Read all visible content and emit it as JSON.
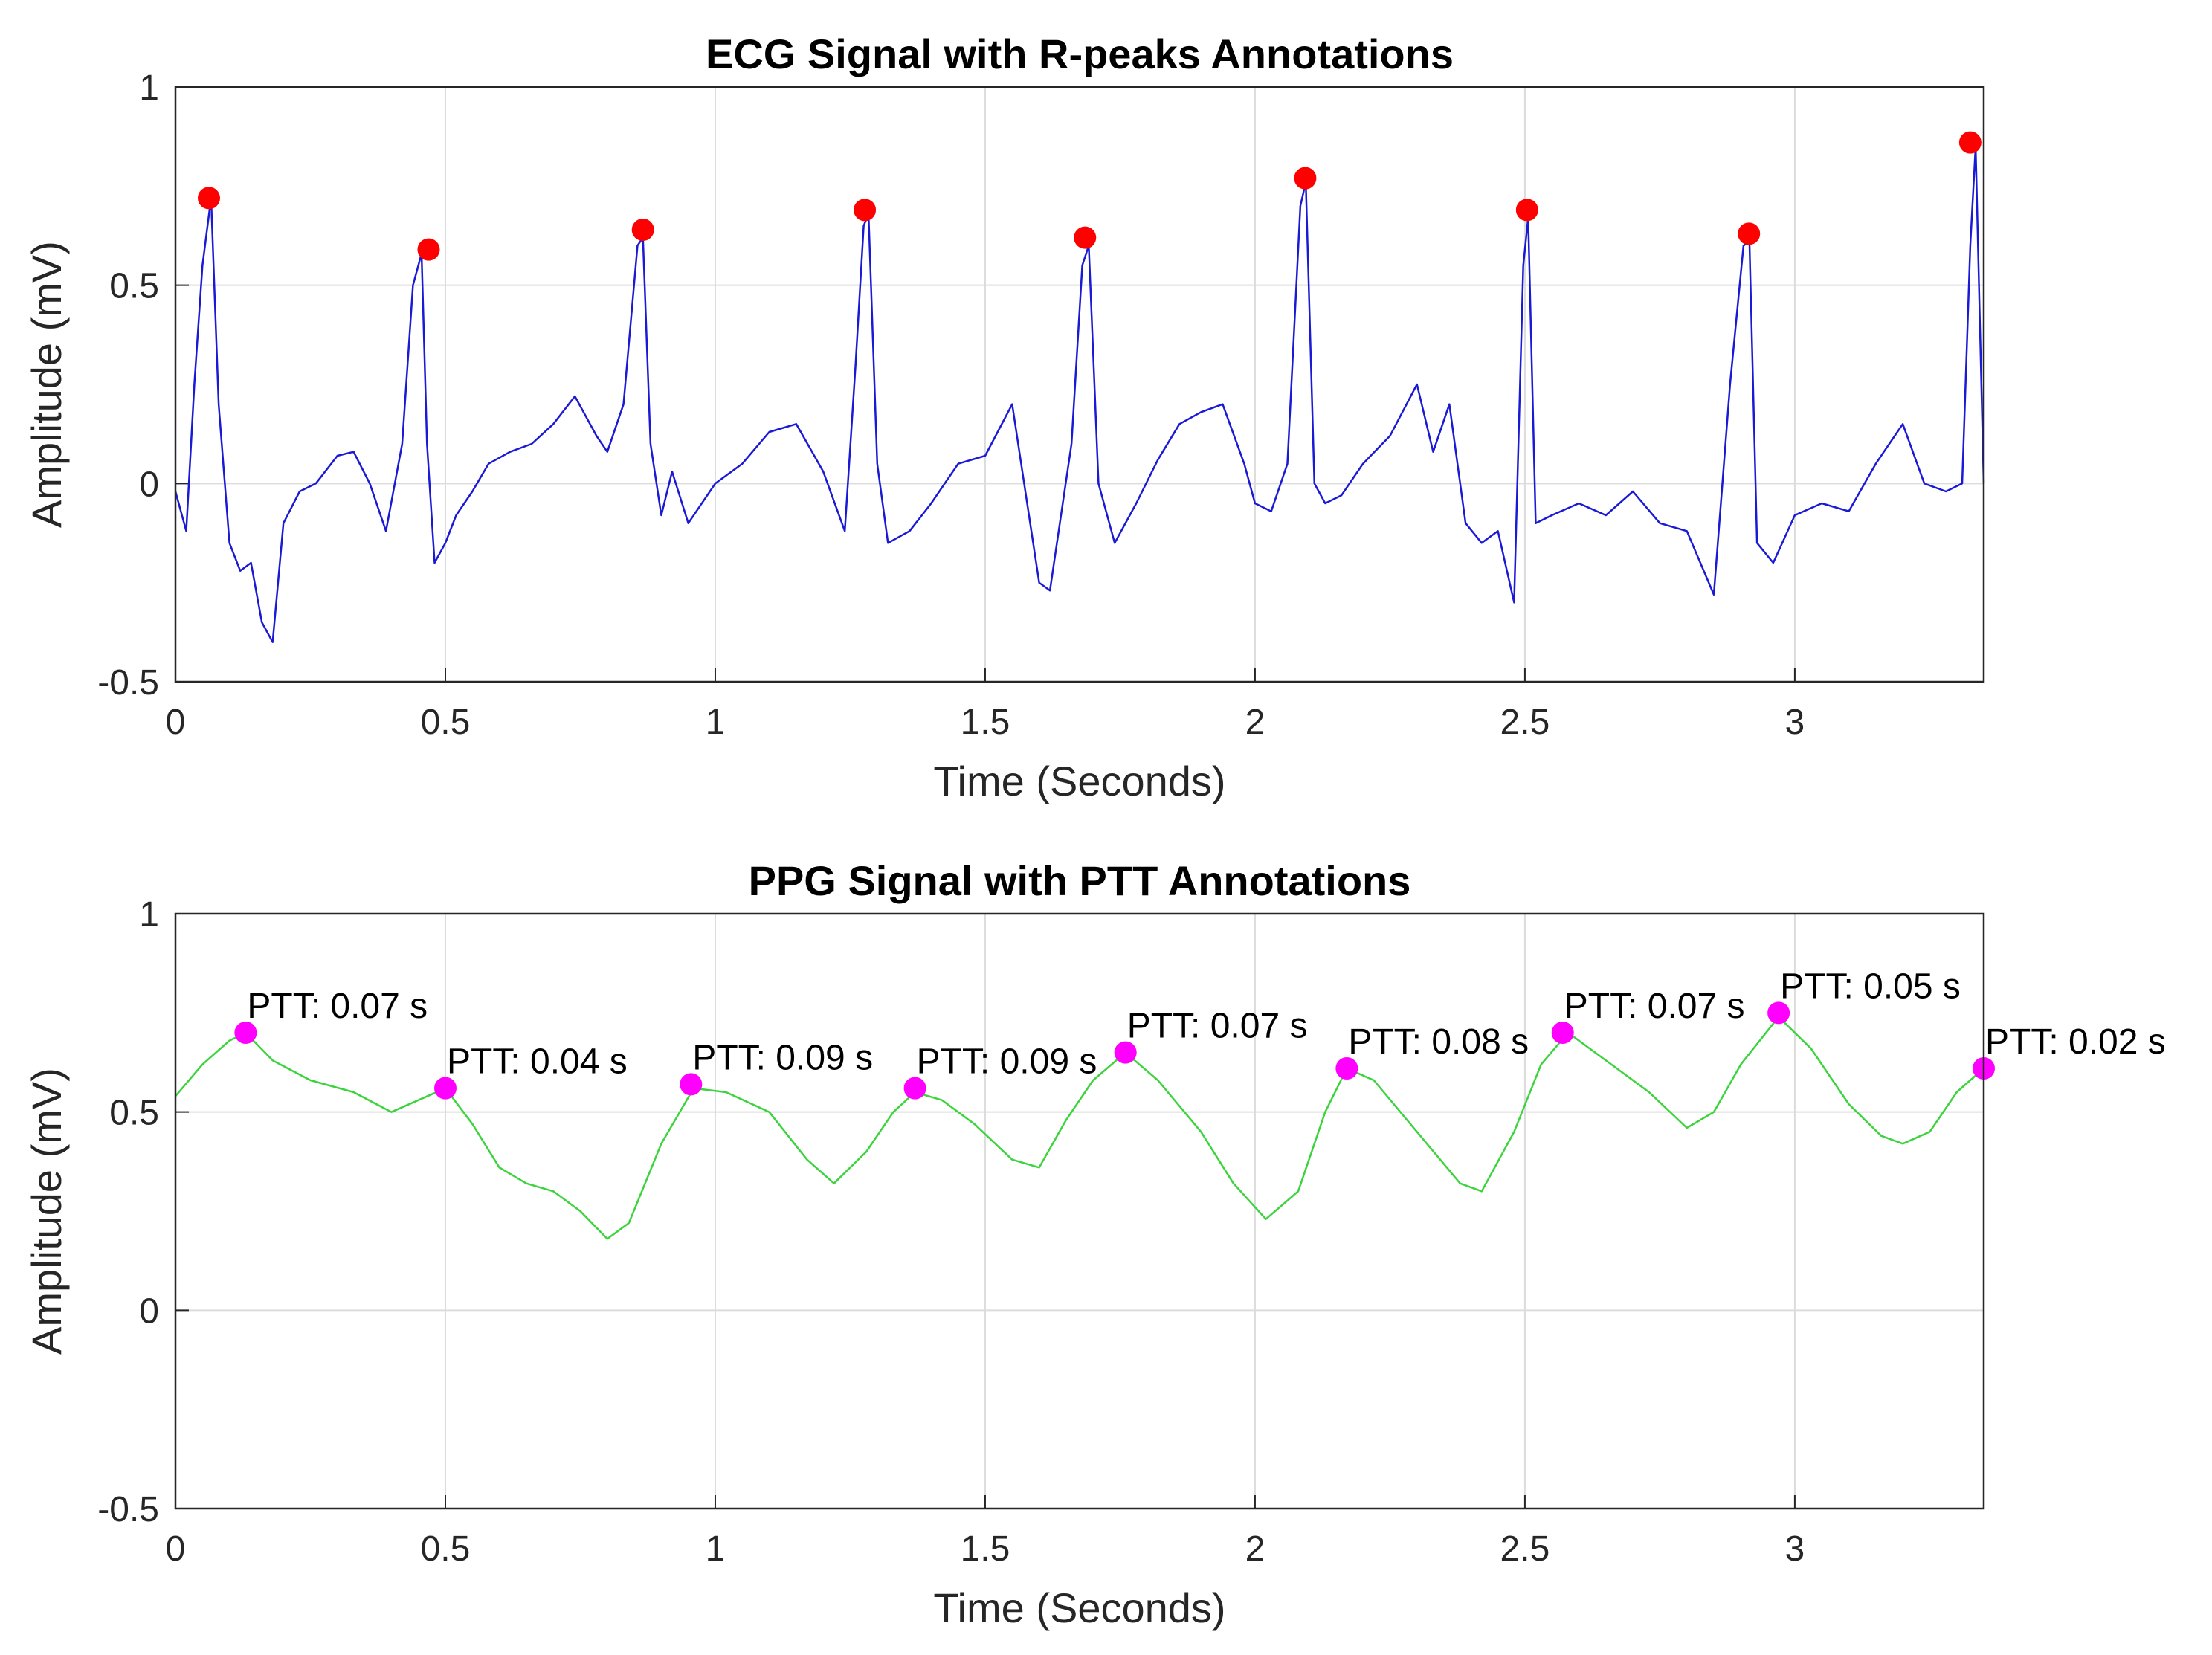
{
  "chart_data": [
    {
      "type": "line",
      "title": "ECG Signal with R-peaks Annotations",
      "xlabel": "Time (Seconds)",
      "ylabel": "Amplitude (mV)",
      "xlim": [
        0,
        3.35
      ],
      "ylim": [
        -0.5,
        1
      ],
      "xticks": [
        0,
        0.5,
        1,
        1.5,
        2,
        2.5,
        3
      ],
      "xtick_labels": [
        "0",
        "0.5",
        "1",
        "1.5",
        "2",
        "2.5",
        "3"
      ],
      "yticks": [
        -0.5,
        0,
        0.5,
        1
      ],
      "ytick_labels": [
        "-0.5",
        "0",
        "0.5",
        "1"
      ],
      "grid": true,
      "line_color": "#1a1ad6",
      "marker_color": "#ff0000",
      "series": [
        {
          "name": "ECG",
          "x": [
            0,
            0.02,
            0.035,
            0.05,
            0.066,
            0.08,
            0.1,
            0.12,
            0.14,
            0.16,
            0.18,
            0.2,
            0.23,
            0.26,
            0.3,
            0.33,
            0.36,
            0.39,
            0.42,
            0.44,
            0.456,
            0.466,
            0.48,
            0.5,
            0.52,
            0.55,
            0.58,
            0.62,
            0.66,
            0.7,
            0.74,
            0.78,
            0.8,
            0.83,
            0.856,
            0.866,
            0.88,
            0.9,
            0.92,
            0.95,
            1.0,
            1.05,
            1.1,
            1.15,
            1.2,
            1.24,
            1.26,
            1.275,
            1.284,
            1.3,
            1.32,
            1.36,
            1.4,
            1.45,
            1.5,
            1.55,
            1.6,
            1.62,
            1.66,
            1.68,
            1.692,
            1.71,
            1.74,
            1.78,
            1.82,
            1.86,
            1.9,
            1.94,
            1.98,
            2.0,
            2.03,
            2.06,
            2.084,
            2.094,
            2.11,
            2.13,
            2.16,
            2.2,
            2.25,
            2.3,
            2.33,
            2.36,
            2.39,
            2.42,
            2.45,
            2.48,
            2.497,
            2.506,
            2.52,
            2.55,
            2.6,
            2.65,
            2.7,
            2.75,
            2.8,
            2.85,
            2.88,
            2.905,
            2.916,
            2.93,
            2.96,
            3.0,
            3.05,
            3.1,
            3.15,
            3.2,
            3.24,
            3.28,
            3.31,
            3.325,
            3.335,
            3.35
          ],
          "y": [
            -0.02,
            -0.12,
            0.25,
            0.55,
            0.72,
            0.2,
            -0.15,
            -0.22,
            -0.2,
            -0.35,
            -0.4,
            -0.1,
            -0.02,
            0.0,
            0.07,
            0.08,
            0.0,
            -0.12,
            0.1,
            0.5,
            0.58,
            0.1,
            -0.2,
            -0.15,
            -0.08,
            -0.02,
            0.05,
            0.08,
            0.1,
            0.15,
            0.22,
            0.12,
            0.08,
            0.2,
            0.6,
            0.62,
            0.1,
            -0.08,
            0.03,
            -0.1,
            0.0,
            0.05,
            0.13,
            0.15,
            0.03,
            -0.12,
            0.3,
            0.65,
            0.68,
            0.05,
            -0.15,
            -0.12,
            -0.05,
            0.05,
            0.07,
            0.2,
            -0.25,
            -0.27,
            0.1,
            0.55,
            0.6,
            0.0,
            -0.15,
            -0.05,
            0.06,
            0.15,
            0.18,
            0.2,
            0.05,
            -0.05,
            -0.07,
            0.05,
            0.7,
            0.76,
            0.0,
            -0.05,
            -0.03,
            0.05,
            0.12,
            0.25,
            0.08,
            0.2,
            -0.1,
            -0.15,
            -0.12,
            -0.3,
            0.55,
            0.67,
            -0.1,
            -0.08,
            -0.05,
            -0.08,
            -0.02,
            -0.1,
            -0.12,
            -0.28,
            0.25,
            0.6,
            0.61,
            -0.15,
            -0.2,
            -0.08,
            -0.05,
            -0.07,
            0.05,
            0.15,
            0.0,
            -0.02,
            0.0,
            0.6,
            0.85,
            0.0
          ]
        }
      ],
      "markers": {
        "name": "R-peaks",
        "x": [
          0.062,
          0.469,
          0.866,
          1.277,
          1.685,
          2.093,
          2.504,
          2.915,
          3.325
        ],
        "y": [
          0.72,
          0.59,
          0.64,
          0.69,
          0.62,
          0.77,
          0.69,
          0.63,
          0.86
        ]
      }
    },
    {
      "type": "line",
      "title": "PPG Signal with PTT Annotations",
      "xlabel": "Time (Seconds)",
      "ylabel": "Amplitude (mV)",
      "xlim": [
        0,
        3.35
      ],
      "ylim": [
        -0.5,
        1
      ],
      "xticks": [
        0,
        0.5,
        1,
        1.5,
        2,
        2.5,
        3
      ],
      "xtick_labels": [
        "0",
        "0.5",
        "1",
        "1.5",
        "2",
        "2.5",
        "3"
      ],
      "yticks": [
        -0.5,
        0,
        0.5,
        1
      ],
      "ytick_labels": [
        "-0.5",
        "0",
        "0.5",
        "1"
      ],
      "grid": true,
      "line_color": "#3cd43c",
      "marker_color": "#ff00ff",
      "series": [
        {
          "name": "PPG",
          "x": [
            0,
            0.05,
            0.1,
            0.13,
            0.18,
            0.25,
            0.33,
            0.4,
            0.45,
            0.5,
            0.55,
            0.6,
            0.65,
            0.7,
            0.75,
            0.8,
            0.84,
            0.9,
            0.96,
            1.02,
            1.1,
            1.17,
            1.22,
            1.28,
            1.33,
            1.37,
            1.42,
            1.48,
            1.55,
            1.6,
            1.65,
            1.7,
            1.76,
            1.82,
            1.9,
            1.96,
            2.02,
            2.08,
            2.13,
            2.17,
            2.22,
            2.3,
            2.38,
            2.42,
            2.48,
            2.53,
            2.58,
            2.65,
            2.73,
            2.8,
            2.85,
            2.9,
            2.97,
            3.03,
            3.1,
            3.16,
            3.2,
            3.25,
            3.3,
            3.35
          ],
          "y": [
            0.54,
            0.62,
            0.68,
            0.7,
            0.63,
            0.58,
            0.55,
            0.5,
            0.53,
            0.56,
            0.47,
            0.36,
            0.32,
            0.3,
            0.25,
            0.18,
            0.22,
            0.42,
            0.56,
            0.55,
            0.5,
            0.38,
            0.32,
            0.4,
            0.5,
            0.55,
            0.53,
            0.47,
            0.38,
            0.36,
            0.48,
            0.58,
            0.65,
            0.58,
            0.45,
            0.32,
            0.23,
            0.3,
            0.5,
            0.61,
            0.58,
            0.45,
            0.32,
            0.3,
            0.45,
            0.62,
            0.7,
            0.63,
            0.55,
            0.46,
            0.5,
            0.62,
            0.74,
            0.66,
            0.52,
            0.44,
            0.42,
            0.45,
            0.55,
            0.61
          ]
        }
      ],
      "markers": {
        "name": "PTT points",
        "x": [
          0.13,
          0.5,
          0.955,
          1.37,
          1.76,
          2.17,
          2.57,
          2.97,
          3.35
        ],
        "y": [
          0.7,
          0.56,
          0.57,
          0.56,
          0.65,
          0.61,
          0.7,
          0.75,
          0.61
        ]
      },
      "annotations": [
        "PTT: 0.07 s",
        "PTT: 0.04 s",
        "PTT: 0.09 s",
        "PTT: 0.09 s",
        "PTT: 0.07 s",
        "PTT: 0.08 s",
        "PTT: 0.07 s",
        "PTT: 0.05 s",
        "PTT: 0.02 s"
      ]
    }
  ]
}
